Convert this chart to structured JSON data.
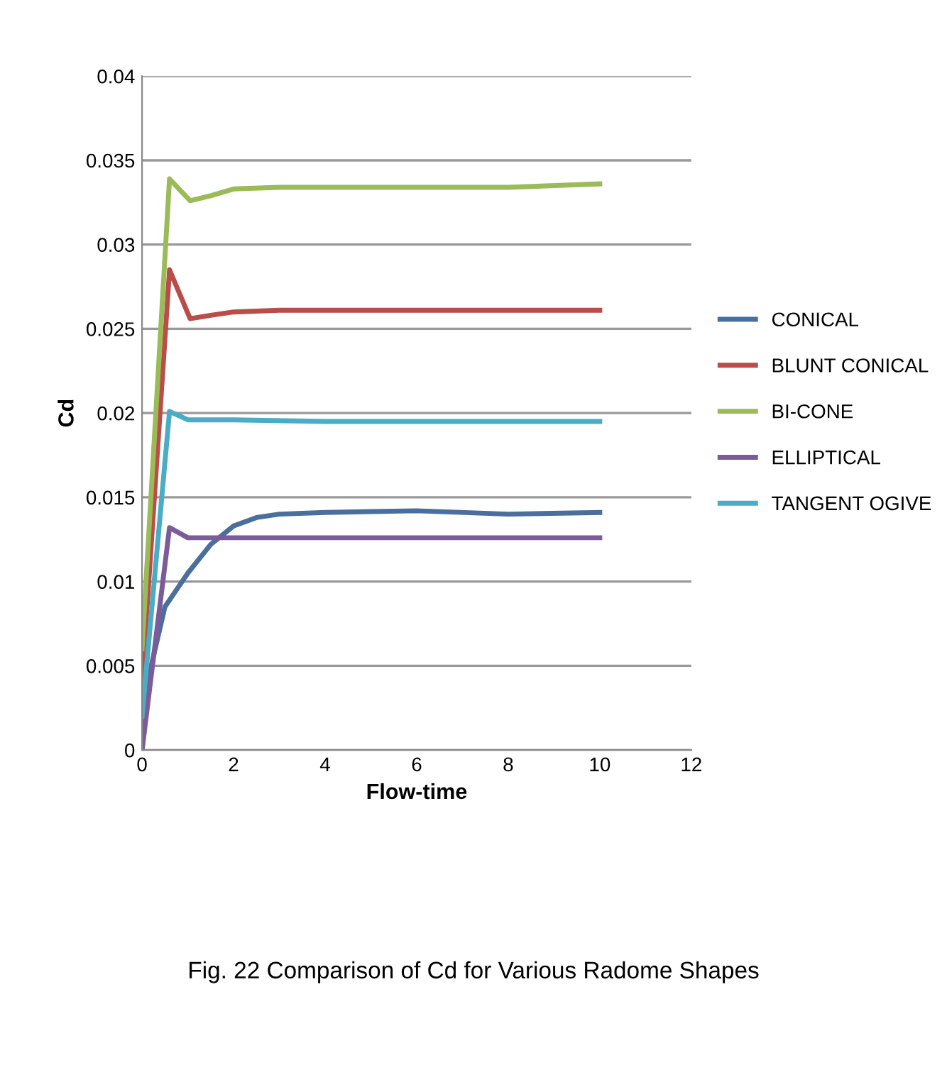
{
  "chart_data": {
    "type": "line",
    "xlabel": "Flow-time",
    "ylabel": "Cd",
    "annotations": [
      "Fig. 22 Comparison of Cd for Various Radome Shapes"
    ],
    "xlim": [
      0,
      12
    ],
    "xticks": [
      0,
      2,
      4,
      6,
      8,
      10,
      12
    ],
    "ylim": [
      0,
      0.04
    ],
    "yticks": [
      0,
      0.005,
      0.01,
      0.015,
      0.02,
      0.025,
      0.03,
      0.035,
      0.04
    ],
    "grid": "y",
    "legend": "right",
    "marker": "none",
    "line_style": "solid",
    "series": [
      {
        "name": "CONICAL",
        "color": "#4a6f9c",
        "x": [
          0,
          0.2,
          0.5,
          1,
          1.5,
          2,
          2.5,
          3,
          4,
          6,
          8,
          10
        ],
        "values": [
          0,
          0.005,
          0.0085,
          0.0105,
          0.0122,
          0.0133,
          0.0138,
          0.014,
          0.0141,
          0.0142,
          0.014,
          0.0141
        ]
      },
      {
        "name": "BLUNT CONICAL",
        "color": "#b84d4a",
        "x": [
          0,
          0.6,
          1.05,
          1.5,
          2,
          3,
          6,
          10
        ],
        "values": [
          0.004,
          0.0285,
          0.0256,
          0.0258,
          0.026,
          0.0261,
          0.0261,
          0.0261
        ]
      },
      {
        "name": "BI-CONE",
        "color": "#9bbb59",
        "x": [
          0,
          0.6,
          1.05,
          1.5,
          2,
          3,
          6,
          8,
          10
        ],
        "values": [
          0.006,
          0.0339,
          0.0326,
          0.0329,
          0.0333,
          0.0334,
          0.0334,
          0.0334,
          0.0336
        ]
      },
      {
        "name": "ELLIPTICAL",
        "color": "#7b5c9a",
        "x": [
          0,
          0.6,
          1,
          2,
          4,
          6,
          8,
          10
        ],
        "values": [
          0,
          0.0132,
          0.0126,
          0.0126,
          0.0126,
          0.0126,
          0.0126,
          0.0126
        ]
      },
      {
        "name": "TANGENT OGIVE",
        "color": "#4bacc6",
        "x": [
          0,
          0.6,
          1,
          2,
          4,
          6,
          8,
          10
        ],
        "values": [
          0.002,
          0.0201,
          0.0196,
          0.0196,
          0.0195,
          0.0195,
          0.0195,
          0.0195
        ]
      }
    ]
  }
}
